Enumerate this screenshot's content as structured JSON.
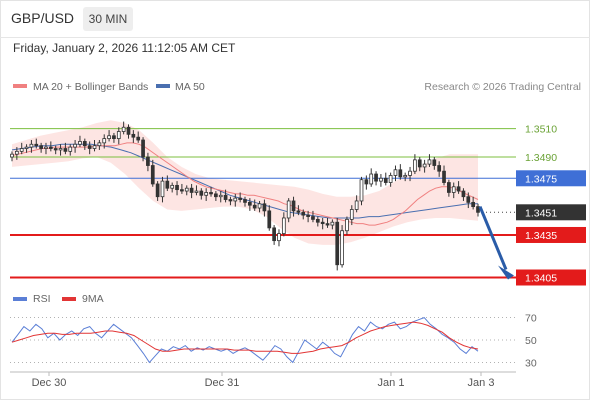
{
  "header": {
    "symbol": "GBP/USD",
    "timeframe": "30 MIN",
    "datetime": "Friday, January 2, 2026 11:12:05 AM CET"
  },
  "legend": {
    "ma20": "MA 20 + Bollinger Bands",
    "ma50": "MA 50",
    "copyright": "Research © 2026 Trading Central",
    "rsi": "RSI",
    "rsi_ma": "9MA"
  },
  "colors": {
    "ma20": "#f08080",
    "ma50": "#4a6fb0",
    "bollinger_fill": "#fde0de",
    "support": "#e31b1b",
    "pivot": "#3f6fd6",
    "resistance": "#7cbf3f",
    "candle": "#333333",
    "arrow": "#2a5ca8",
    "rsi": "#5b7fd6",
    "rsi_ma": "#e23535"
  },
  "chart_data": [
    {
      "type": "candlestick",
      "title": "GBP/USD",
      "timeframe": "30 MIN",
      "ylim": [
        1.3399,
        1.3526
      ],
      "x_ticks": [
        "Dec 30",
        "Dec 31",
        "Jan 1",
        "Jan 3"
      ],
      "levels": [
        {
          "label": "1.3510",
          "value": 1.351,
          "kind": "resistance"
        },
        {
          "label": "1.3490",
          "value": 1.349,
          "kind": "resistance"
        },
        {
          "label": "1.3475",
          "value": 1.3475,
          "kind": "pivot"
        },
        {
          "label": "1.3435",
          "value": 1.3435,
          "kind": "support"
        },
        {
          "label": "1.3405",
          "value": 1.3405,
          "kind": "support"
        }
      ],
      "last_price": {
        "label": "1.3451",
        "value": 1.3451
      },
      "arrow": {
        "from": 1.3455,
        "to": 1.3405,
        "direction": "down"
      },
      "close_series": [
        1.3492,
        1.3494,
        1.3496,
        1.3497,
        1.3499,
        1.3498,
        1.3496,
        1.3497,
        1.3496,
        1.3495,
        1.3496,
        1.3494,
        1.3497,
        1.3499,
        1.3501,
        1.3498,
        1.3496,
        1.3498,
        1.35,
        1.3503,
        1.3505,
        1.3503,
        1.3508,
        1.3511,
        1.3506,
        1.3504,
        1.3502,
        1.349,
        1.3484,
        1.3471,
        1.3462,
        1.3473,
        1.3468,
        1.347,
        1.3467,
        1.3466,
        1.3468,
        1.3465,
        1.3466,
        1.3463,
        1.3465,
        1.3464,
        1.3462,
        1.3463,
        1.346,
        1.3459,
        1.3461,
        1.346,
        1.3458,
        1.3456,
        1.3454,
        1.3457,
        1.3452,
        1.344,
        1.3431,
        1.3436,
        1.3447,
        1.3459,
        1.3452,
        1.3451,
        1.3449,
        1.3448,
        1.3446,
        1.3444,
        1.3443,
        1.3442,
        1.3444,
        1.3414,
        1.3438,
        1.3446,
        1.3453,
        1.3459,
        1.3474,
        1.3471,
        1.3478,
        1.3473,
        1.3475,
        1.3472,
        1.3477,
        1.3481,
        1.3476,
        1.3477,
        1.348,
        1.3488,
        1.3483,
        1.3485,
        1.3488,
        1.3484,
        1.348,
        1.3472,
        1.3465,
        1.3469,
        1.3466,
        1.3462,
        1.3458,
        1.3455,
        1.3451
      ],
      "ma20_series": [
        1.3491,
        1.3492,
        1.3493,
        1.3494,
        1.3495,
        1.3496,
        1.3496,
        1.3497,
        1.3497,
        1.3497,
        1.3497,
        1.3497,
        1.3497,
        1.3497,
        1.3498,
        1.3498,
        1.3498,
        1.3498,
        1.3499,
        1.35,
        1.35,
        1.3499,
        1.3497,
        1.3494,
        1.3491,
        1.3488,
        1.3485,
        1.3482,
        1.3479,
        1.3476,
        1.3473,
        1.3471,
        1.3469,
        1.3468,
        1.3467,
        1.3466,
        1.3465,
        1.3464,
        1.3464,
        1.3463,
        1.3463,
        1.3462,
        1.3461,
        1.346,
        1.3459,
        1.3457,
        1.3456,
        1.3454,
        1.3452,
        1.3451,
        1.345,
        1.3449,
        1.3448,
        1.3447,
        1.3446,
        1.3445,
        1.3444,
        1.3443,
        1.3443,
        1.3442,
        1.3442,
        1.3443,
        1.3444,
        1.3446,
        1.3449,
        1.3452,
        1.3456,
        1.346,
        1.3463,
        1.3466,
        1.3468,
        1.3469,
        1.3469,
        1.3468,
        1.3466,
        1.3464,
        1.3462,
        1.346
      ],
      "ma50_series": [
        1.3495,
        1.3496,
        1.3497,
        1.3498,
        1.3498,
        1.3499,
        1.3499,
        1.3499,
        1.3499,
        1.3498,
        1.3497,
        1.3495,
        1.3493,
        1.349,
        1.3487,
        1.3484,
        1.3481,
        1.3478,
        1.3475,
        1.3472,
        1.3469,
        1.3466,
        1.3463,
        1.3461,
        1.3459,
        1.3457,
        1.3455,
        1.3453,
        1.3451,
        1.345,
        1.3449,
        1.3448,
        1.3447,
        1.3447,
        1.3447,
        1.3447,
        1.3448,
        1.3448,
        1.3449,
        1.345,
        1.3451,
        1.3452,
        1.3453,
        1.3454,
        1.3455,
        1.3456,
        1.3457,
        1.3457
      ],
      "bollinger_upper": [
        1.3499,
        1.3502,
        1.3505,
        1.3507,
        1.3509,
        1.3511,
        1.3514,
        1.3516,
        1.3514,
        1.3509,
        1.35,
        1.349,
        1.3483,
        1.3478,
        1.3475,
        1.3474,
        1.3473,
        1.3472,
        1.3471,
        1.347,
        1.3469,
        1.3467,
        1.3464,
        1.3462,
        1.3462,
        1.3463,
        1.3466,
        1.3472,
        1.3478,
        1.3484,
        1.3489,
        1.3492,
        1.3492,
        1.3492
      ],
      "bollinger_lower": [
        1.3483,
        1.3484,
        1.3485,
        1.3486,
        1.3487,
        1.3489,
        1.349,
        1.3486,
        1.3478,
        1.3468,
        1.3459,
        1.3453,
        1.3452,
        1.3453,
        1.3454,
        1.3455,
        1.3455,
        1.3453,
        1.3448,
        1.344,
        1.3433,
        1.3429,
        1.3428,
        1.3428,
        1.343,
        1.3433,
        1.3437,
        1.3441,
        1.3444,
        1.3446,
        1.3447,
        1.3447,
        1.3446,
        1.3445
      ]
    },
    {
      "type": "line",
      "title": "RSI",
      "ylim": [
        25,
        75
      ],
      "y_ticks": [
        "70",
        "50",
        "30"
      ],
      "series": [
        {
          "name": "RSI",
          "values": [
            48,
            55,
            62,
            58,
            64,
            60,
            52,
            56,
            50,
            55,
            58,
            54,
            60,
            62,
            56,
            52,
            58,
            64,
            60,
            56,
            52,
            45,
            38,
            30,
            36,
            42,
            40,
            44,
            42,
            45,
            40,
            43,
            41,
            44,
            42,
            40,
            42,
            38,
            41,
            43,
            40,
            36,
            32,
            38,
            45,
            42,
            35,
            30,
            40,
            50,
            46,
            42,
            48,
            44,
            38,
            35,
            45,
            55,
            62,
            58,
            66,
            62,
            60,
            64,
            66,
            60,
            62,
            66,
            68,
            70,
            64,
            60,
            55,
            52,
            48,
            42,
            38,
            44,
            40
          ]
        },
        {
          "name": "9MA",
          "values": [
            48,
            50,
            52,
            54,
            55,
            56,
            56,
            55,
            55,
            56,
            56,
            56,
            57,
            58,
            58,
            57,
            56,
            54,
            50,
            46,
            42,
            40,
            40,
            41,
            42,
            42,
            42,
            42,
            42,
            42,
            42,
            41,
            41,
            41,
            40,
            40,
            40,
            40,
            39,
            38,
            38,
            39,
            40,
            42,
            43,
            44,
            45,
            48,
            52,
            55,
            58,
            60,
            62,
            63,
            64,
            65,
            66,
            65,
            63,
            60,
            57,
            52,
            48,
            45,
            43,
            42
          ]
        }
      ]
    }
  ]
}
